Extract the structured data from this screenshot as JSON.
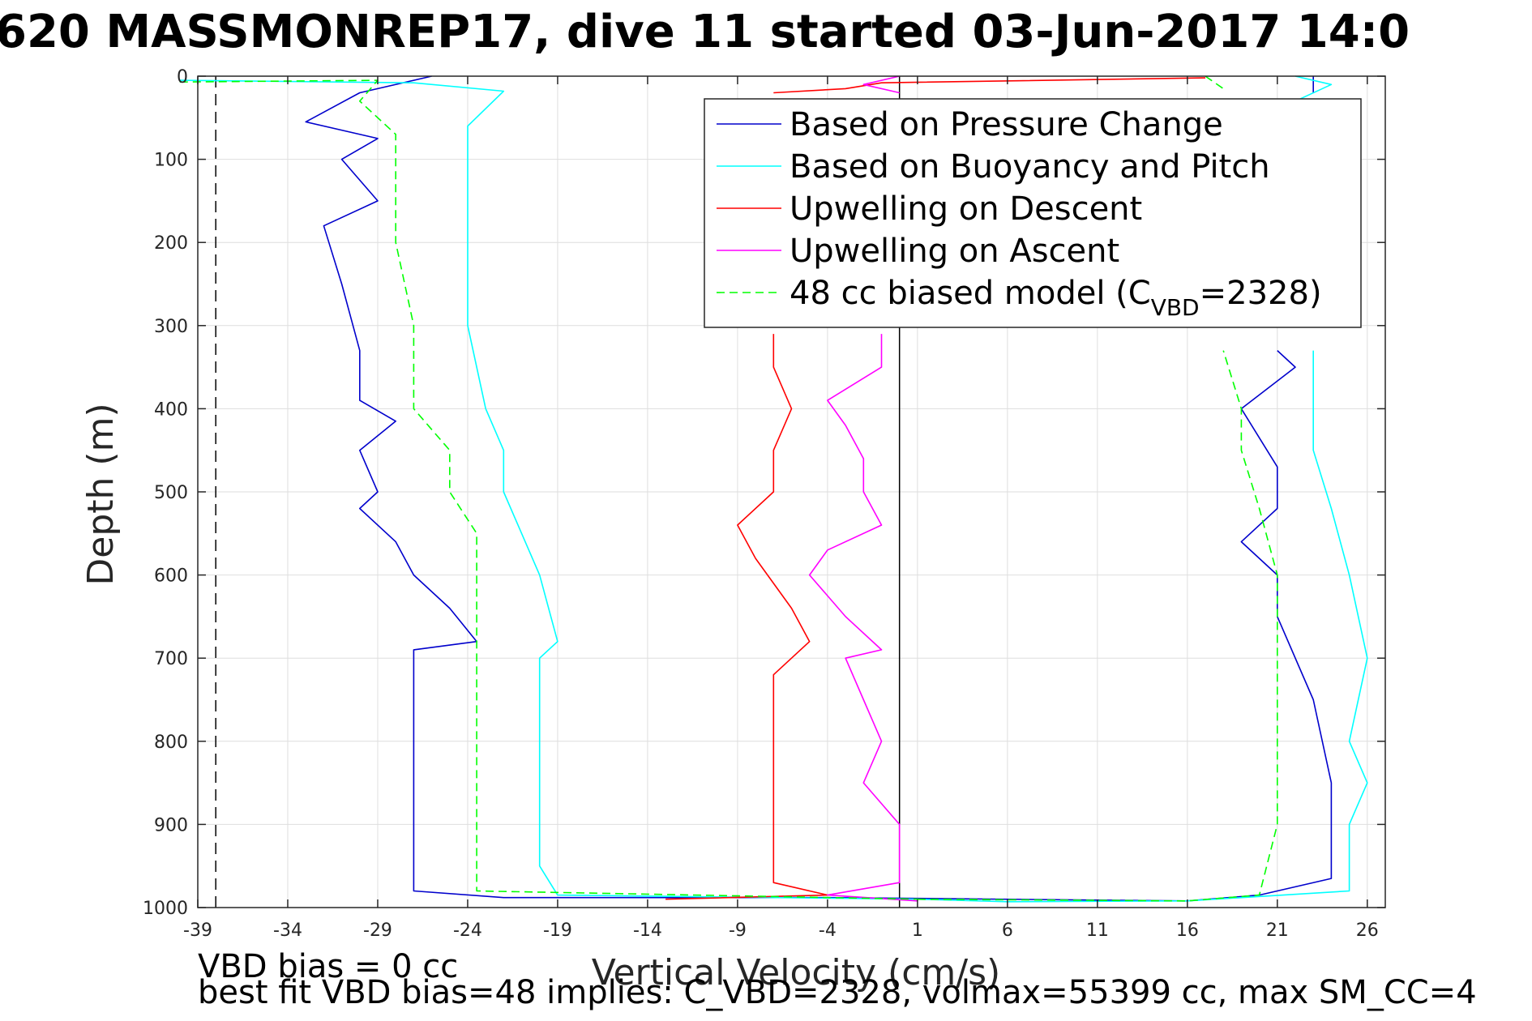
{
  "chart_data": {
    "type": "line",
    "title": "620 MASSMONREP17, dive 11 started 03-Jun-2017 14:0",
    "xlabel": "Vertical Velocity (cm/s)",
    "ylabel": "Depth (m)",
    "xlim": [
      -39,
      27
    ],
    "ylim": [
      0,
      1000
    ],
    "y_reversed": true,
    "grid": true,
    "x_ticks": [
      "-39",
      "-34",
      "-29",
      "-24",
      "-19",
      "-14",
      "-9",
      "-4",
      "1",
      "6",
      "11",
      "16",
      "21",
      "26"
    ],
    "y_ticks": [
      "0",
      "100",
      "200",
      "300",
      "400",
      "500",
      "600",
      "700",
      "800",
      "900",
      "1000"
    ],
    "vertical_lines": [
      {
        "x": 0,
        "style": "solid",
        "color": "#000000"
      },
      {
        "x": -38,
        "style": "dashed",
        "color": "#000000"
      }
    ],
    "legend_position": "top-right",
    "series": [
      {
        "name": "Based on Pressure Change",
        "color": "#0000cc",
        "style": "solid",
        "segments": [
          [
            [
              -26,
              0
            ],
            [
              -30,
              20
            ],
            [
              -33,
              55
            ],
            [
              -29,
              75
            ],
            [
              -31,
              100
            ],
            [
              -29,
              150
            ],
            [
              -32,
              180
            ],
            [
              -31,
              250
            ],
            [
              -30,
              330
            ],
            [
              -30,
              390
            ],
            [
              -28,
              415
            ],
            [
              -30,
              450
            ],
            [
              -29,
              500
            ],
            [
              -30,
              520
            ],
            [
              -28,
              560
            ],
            [
              -27,
              600
            ],
            [
              -25,
              640
            ],
            [
              -23.5,
              680
            ],
            [
              -27,
              690
            ],
            [
              -27,
              750
            ],
            [
              -27,
              850
            ],
            [
              -27,
              950
            ],
            [
              -27,
              980
            ],
            [
              -22,
              988
            ],
            [
              -4,
              988
            ],
            [
              16,
              992
            ]
          ],
          [
            [
              16,
              992
            ],
            [
              20,
              985
            ],
            [
              24,
              965
            ],
            [
              24,
              850
            ],
            [
              23,
              750
            ],
            [
              21,
              650
            ],
            [
              21,
              600
            ],
            [
              19,
              560
            ],
            [
              21,
              520
            ],
            [
              21,
              470
            ],
            [
              19,
              400
            ],
            [
              22,
              350
            ],
            [
              21,
              330
            ]
          ],
          [
            [
              23,
              0
            ],
            [
              23,
              20
            ]
          ]
        ]
      },
      {
        "name": "Based on Buoyancy and Pitch",
        "color": "#00ffff",
        "style": "solid",
        "segments": [
          [
            [
              -40,
              5
            ],
            [
              -27,
              8
            ],
            [
              -22,
              18
            ],
            [
              -24,
              60
            ],
            [
              -24,
              100
            ],
            [
              -24,
              200
            ],
            [
              -24,
              300
            ],
            [
              -23,
              400
            ],
            [
              -22,
              450
            ],
            [
              -22,
              500
            ],
            [
              -20,
              600
            ],
            [
              -19,
              680
            ],
            [
              -20,
              700
            ],
            [
              -20,
              800
            ],
            [
              -20,
              950
            ],
            [
              -19,
              985
            ],
            [
              1,
              990
            ],
            [
              6,
              993
            ]
          ],
          [
            [
              6,
              993
            ],
            [
              16,
              992
            ],
            [
              25,
              980
            ],
            [
              25,
              900
            ],
            [
              26,
              850
            ],
            [
              25,
              800
            ],
            [
              26,
              700
            ],
            [
              25,
              600
            ],
            [
              24,
              520
            ],
            [
              23,
              450
            ],
            [
              23,
              400
            ],
            [
              23,
              330
            ]
          ],
          [
            [
              22,
              0
            ],
            [
              24,
              10
            ],
            [
              22,
              30
            ]
          ]
        ]
      },
      {
        "name": "Upwelling on Descent",
        "color": "#ff0000",
        "style": "solid",
        "segments": [
          [
            [
              -7,
              310
            ],
            [
              -7,
              350
            ],
            [
              -6,
              400
            ],
            [
              -7,
              450
            ],
            [
              -7,
              500
            ],
            [
              -9,
              540
            ],
            [
              -8,
              580
            ],
            [
              -6,
              640
            ],
            [
              -5,
              680
            ],
            [
              -7,
              720
            ],
            [
              -7,
              800
            ],
            [
              -7,
              900
            ],
            [
              -7,
              970
            ],
            [
              -4,
              985
            ],
            [
              -13,
              990
            ]
          ],
          [
            [
              -7,
              20
            ],
            [
              -3,
              15
            ],
            [
              -1,
              8
            ],
            [
              17,
              2
            ]
          ]
        ]
      },
      {
        "name": "Upwelling on Ascent",
        "color": "#ff00ff",
        "style": "solid",
        "segments": [
          [
            [
              -1,
              310
            ],
            [
              -1,
              350
            ],
            [
              -4,
              390
            ],
            [
              -3,
              420
            ],
            [
              -2,
              460
            ],
            [
              -2,
              500
            ],
            [
              -1,
              540
            ],
            [
              -4,
              570
            ],
            [
              -5,
              600
            ],
            [
              -3,
              650
            ],
            [
              -1,
              690
            ],
            [
              -3,
              700
            ],
            [
              -2,
              750
            ],
            [
              -1,
              800
            ],
            [
              -2,
              850
            ],
            [
              0,
              900
            ],
            [
              0,
              950
            ],
            [
              0,
              970
            ],
            [
              -4,
              985
            ],
            [
              1,
              992
            ]
          ],
          [
            [
              0,
              0
            ],
            [
              -2,
              10
            ],
            [
              0,
              20
            ]
          ]
        ]
      },
      {
        "name": "48 cc biased model (C_VBD=2328)",
        "color": "#00ff00",
        "style": "dashed",
        "segments": [
          [
            [
              -40,
              7
            ],
            [
              -29,
              5
            ],
            [
              -30,
              30
            ],
            [
              -28,
              70
            ],
            [
              -28,
              100
            ],
            [
              -28,
              200
            ],
            [
              -27,
              300
            ],
            [
              -27,
              400
            ],
            [
              -25,
              450
            ],
            [
              -25,
              500
            ],
            [
              -23.5,
              550
            ],
            [
              -23.5,
              600
            ],
            [
              -23.5,
              700
            ],
            [
              -23.5,
              800
            ],
            [
              -23.5,
              900
            ],
            [
              -23.5,
              980
            ],
            [
              1,
              990
            ]
          ],
          [
            [
              1,
              990
            ],
            [
              16,
              992
            ],
            [
              20,
              985
            ],
            [
              21,
              900
            ],
            [
              21,
              800
            ],
            [
              21,
              700
            ],
            [
              21,
              600
            ],
            [
              20,
              520
            ],
            [
              19,
              450
            ],
            [
              19,
              400
            ],
            [
              18,
              330
            ]
          ],
          [
            [
              17,
              0
            ],
            [
              18,
              15
            ]
          ]
        ]
      }
    ],
    "legend": {
      "entries": [
        "Based on Pressure Change",
        "Based on Buoyancy and Pitch",
        "Upwelling on Descent",
        "Upwelling on Ascent",
        "48 cc biased model (C"
      ],
      "last_subscript": "VBD",
      "last_suffix": "=2328)"
    },
    "annotations": [
      "VBD bias = 0 cc",
      "best fit VBD bias=48 implies: C_VBD=2328, volmax=55399 cc, max SM_CC=4"
    ]
  }
}
